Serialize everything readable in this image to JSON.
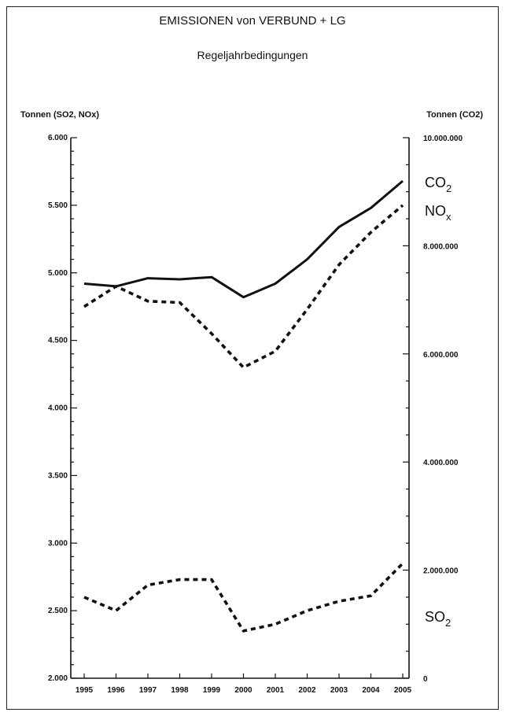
{
  "chart_data": {
    "type": "line",
    "title": "EMISSIONEN von VERBUND + LG",
    "subtitle": "Regeljahrbedingungen",
    "ylabel_left": "Tonnen (SO2, NOx)",
    "ylabel_right": "Tonnen (CO2)",
    "x": [
      "1995",
      "1996",
      "1997",
      "1998",
      "1999",
      "2000",
      "2001",
      "2002",
      "2003",
      "2004",
      "2005"
    ],
    "ylim_left": [
      2000,
      6000
    ],
    "ylim_right": [
      0,
      10000000
    ],
    "yticks_left": [
      "2.000",
      "2.500",
      "3.000",
      "3.500",
      "4.000",
      "4.500",
      "5.000",
      "5.500",
      "6.000"
    ],
    "yticks_left_values": [
      2000,
      2500,
      3000,
      3500,
      4000,
      4500,
      5000,
      5500,
      6000
    ],
    "yticks_right": [
      "0",
      "2.000.000",
      "4.000.000",
      "6.000.000",
      "8.000.000",
      "10.000.000"
    ],
    "yticks_right_values": [
      0,
      2000000,
      4000000,
      6000000,
      8000000,
      10000000
    ],
    "series": [
      {
        "label_main": "CO",
        "label_sub": "2",
        "axis": "right",
        "style": "solid",
        "values": [
          7300000,
          7250000,
          7400000,
          7380000,
          7420000,
          7050000,
          7300000,
          7750000,
          8350000,
          8700000,
          9200000
        ]
      },
      {
        "label_main": "NO",
        "label_sub": "x",
        "axis": "left",
        "style": "dashed",
        "values": [
          4750,
          4900,
          4790,
          4780,
          4550,
          4300,
          4420,
          4730,
          5060,
          5300,
          5500
        ]
      },
      {
        "label_main": "SO",
        "label_sub": "2",
        "axis": "left",
        "style": "dashed",
        "values": [
          2600,
          2500,
          2690,
          2730,
          2730,
          2350,
          2400,
          2500,
          2570,
          2610,
          2850
        ]
      }
    ]
  }
}
